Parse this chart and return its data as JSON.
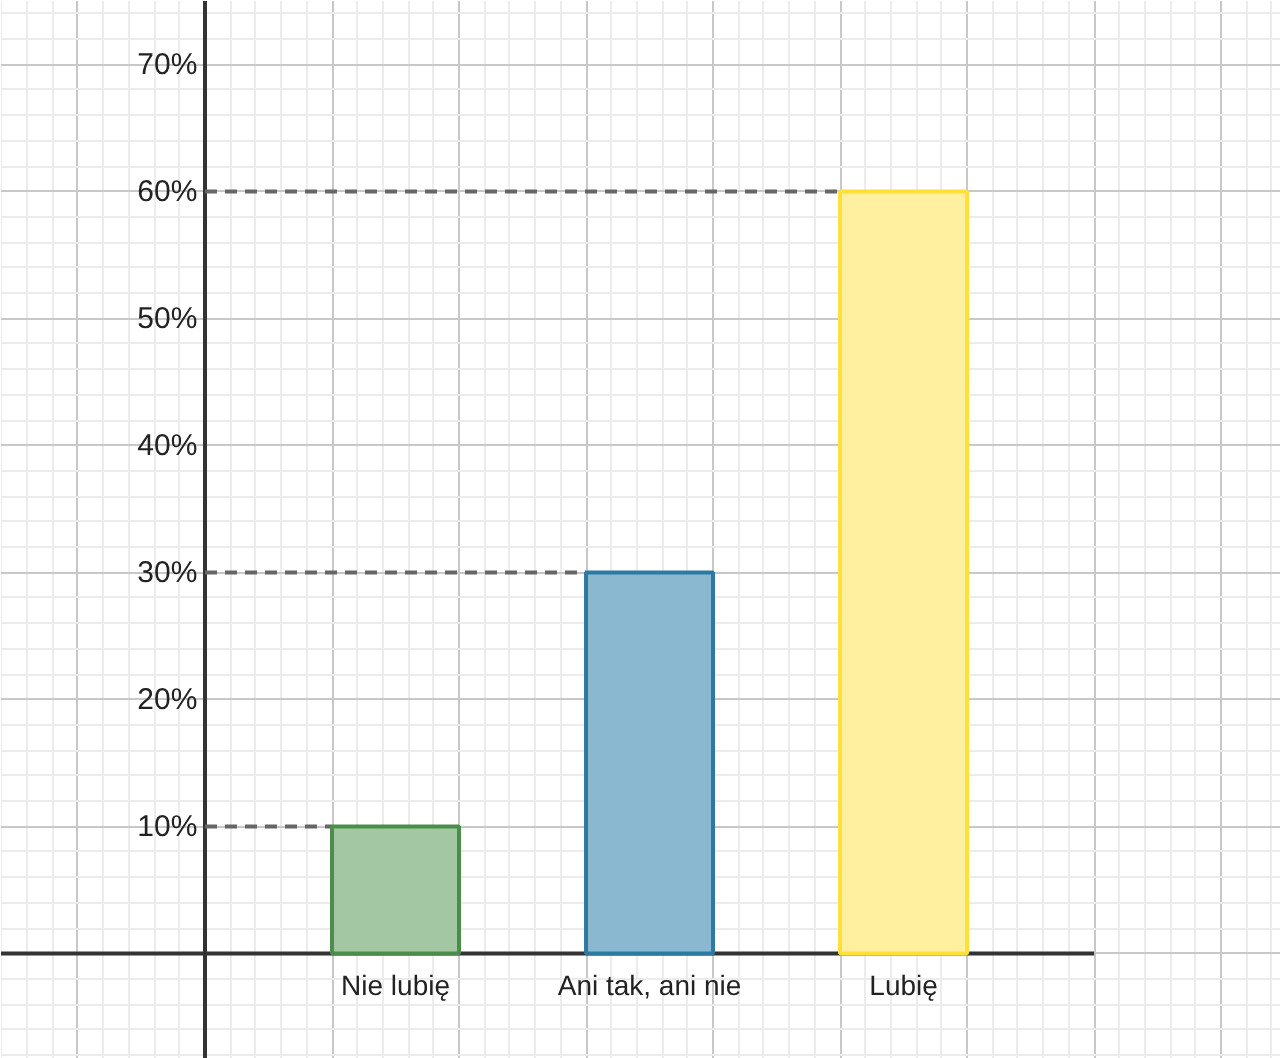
{
  "chart_data": {
    "type": "bar",
    "categories": [
      "Nie lubię",
      "Ani tak, ani nie",
      "Lubię"
    ],
    "values": [
      10,
      30,
      60
    ],
    "colors": [
      "#a3c7a3",
      "#8ab8d0",
      "#fff0a0"
    ],
    "ylim": [
      -8.3,
      75
    ],
    "yticks": [
      {
        "value": 10,
        "label": "10%"
      },
      {
        "value": 20,
        "label": "20%"
      },
      {
        "value": 30,
        "label": "30%"
      },
      {
        "value": 40,
        "label": "40%"
      },
      {
        "value": 50,
        "label": "50%"
      },
      {
        "value": 60,
        "label": "60%"
      },
      {
        "value": 70,
        "label": "70%"
      }
    ],
    "ref_lines": [
      {
        "axis": "y",
        "value": 10,
        "line_style": "dashed",
        "color": "#666666"
      },
      {
        "axis": "y",
        "value": 30,
        "line_style": "dashed",
        "color": "#666666"
      },
      {
        "axis": "y",
        "value": 60,
        "line_style": "dashed",
        "color": "#666666"
      }
    ],
    "grid": true
  }
}
